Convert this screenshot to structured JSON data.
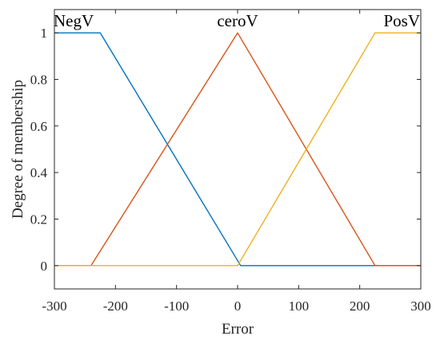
{
  "chart_data": {
    "type": "line",
    "title": "",
    "xlabel": "Error",
    "ylabel": "Degree of membership",
    "xlim": [
      -300,
      300
    ],
    "ylim": [
      -0.1,
      1.1
    ],
    "xticks": [
      -300,
      -200,
      -100,
      0,
      100,
      200,
      300
    ],
    "xtick_labels": [
      "-300",
      "-200",
      "-100",
      "0",
      "100",
      "200",
      "300"
    ],
    "yticks": [
      0,
      0.2,
      0.4,
      0.6,
      0.8,
      1
    ],
    "ytick_labels": [
      "0",
      "0.2",
      "0.4",
      "0.6",
      "0.8",
      "1"
    ],
    "grid": false,
    "series": [
      {
        "name": "NegV",
        "color": "#0072BD",
        "x": [
          -300,
          -225,
          5,
          300
        ],
        "y": [
          1,
          1,
          0,
          0
        ]
      },
      {
        "name": "ceroV",
        "color": "#D95319",
        "x": [
          -300,
          -240,
          0,
          225,
          300
        ],
        "y": [
          0,
          0,
          1,
          0,
          0
        ]
      },
      {
        "name": "PosV",
        "color": "#EDB120",
        "x": [
          -300,
          0,
          225,
          300
        ],
        "y": [
          0,
          0,
          1,
          1
        ]
      }
    ]
  }
}
